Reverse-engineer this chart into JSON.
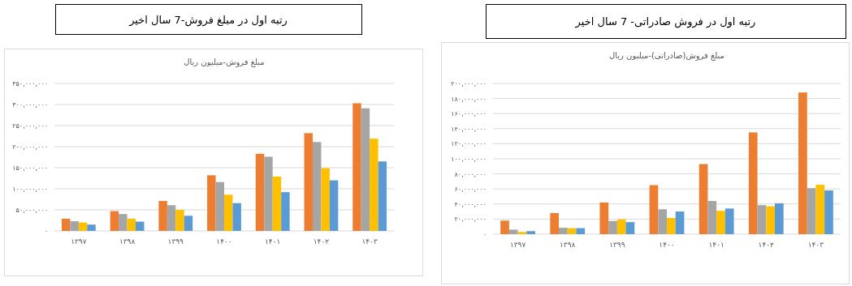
{
  "chart_data": [
    {
      "type": "bar",
      "title": "رتبه اول در مبلغ فروش-7 سال اخیر",
      "subtitle": "مبلغ فروش-میلیون ریال",
      "categories": [
        "۱۳۹۷",
        "۱۳۹۸",
        "۱۳۹۹",
        "۱۴۰۰",
        "۱۴۰۱",
        "۱۴۰۲",
        "۱۴۰۳"
      ],
      "series": [
        {
          "color": "#ed7d31",
          "values": [
            29000000,
            47000000,
            71000000,
            132000000,
            183000000,
            232000000,
            303000000
          ]
        },
        {
          "color": "#a5a5a5",
          "values": [
            23000000,
            40000000,
            61000000,
            116000000,
            176000000,
            211000000,
            291000000
          ]
        },
        {
          "color": "#ffc000",
          "values": [
            20000000,
            29000000,
            50000000,
            86000000,
            129000000,
            149000000,
            219000000
          ]
        },
        {
          "color": "#5b9bd5",
          "values": [
            15000000,
            22000000,
            36000000,
            66000000,
            92000000,
            120000000,
            165000000
          ]
        }
      ],
      "ylim": [
        0,
        350000000
      ],
      "yticks": [
        {
          "value": 0,
          "label": "۰"
        },
        {
          "value": 50000000,
          "label": "۵۰,۰۰۰,۰۰۰"
        },
        {
          "value": 100000000,
          "label": "۱۰۰,۰۰۰,۰۰۰"
        },
        {
          "value": 150000000,
          "label": "۱۵۰,۰۰۰,۰۰۰"
        },
        {
          "value": 200000000,
          "label": "۲۰۰,۰۰۰,۰۰۰"
        },
        {
          "value": 250000000,
          "label": "۲۵۰,۰۰۰,۰۰۰"
        },
        {
          "value": 300000000,
          "label": "۳۰۰,۰۰۰,۰۰۰"
        },
        {
          "value": 350000000,
          "label": "۳۵۰,۰۰۰,۰۰۰"
        }
      ],
      "grid": "y"
    },
    {
      "type": "bar",
      "title": "رتبه اول در فروش صادراتی- 7 سال اخیر",
      "subtitle": "مبلغ فروش(صادراتی)-میلیون ریال",
      "categories": [
        "۱۳۹۷",
        "۱۳۹۸",
        "۱۳۹۹",
        "۱۴۰۰",
        "۱۴۰۱",
        "۱۴۰۲",
        "۱۴۰۳"
      ],
      "series": [
        {
          "color": "#ed7d31",
          "values": [
            18000000,
            28000000,
            42000000,
            65000000,
            93000000,
            135000000,
            188000000
          ]
        },
        {
          "color": "#a5a5a5",
          "values": [
            6000000,
            8500000,
            17500000,
            33000000,
            44000000,
            38500000,
            61000000
          ]
        },
        {
          "color": "#ffc000",
          "values": [
            3000000,
            8000000,
            19500000,
            21500000,
            31000000,
            37000000,
            65500000
          ]
        },
        {
          "color": "#5b9bd5",
          "values": [
            4000000,
            8000000,
            16000000,
            30000000,
            34000000,
            41000000,
            58000000
          ]
        }
      ],
      "ylim": [
        0,
        200000000
      ],
      "yticks": [
        {
          "value": 0,
          "label": "۰"
        },
        {
          "value": 20000000,
          "label": "۲۰,۰۰۰,۰۰۰"
        },
        {
          "value": 40000000,
          "label": "۴۰,۰۰۰,۰۰۰"
        },
        {
          "value": 60000000,
          "label": "۶۰,۰۰۰,۰۰۰"
        },
        {
          "value": 80000000,
          "label": "۸۰,۰۰۰,۰۰۰"
        },
        {
          "value": 100000000,
          "label": "۱۰۰,۰۰۰,۰۰۰"
        },
        {
          "value": 120000000,
          "label": "۱۲۰,۰۰۰,۰۰۰"
        },
        {
          "value": 140000000,
          "label": "۱۴۰,۰۰۰,۰۰۰"
        },
        {
          "value": 160000000,
          "label": "۱۶۰,۰۰۰,۰۰۰"
        },
        {
          "value": 180000000,
          "label": "۱۸۰,۰۰۰,۰۰۰"
        },
        {
          "value": 200000000,
          "label": "۲۰۰,۰۰۰,۰۰۰"
        }
      ],
      "grid": "y"
    }
  ]
}
